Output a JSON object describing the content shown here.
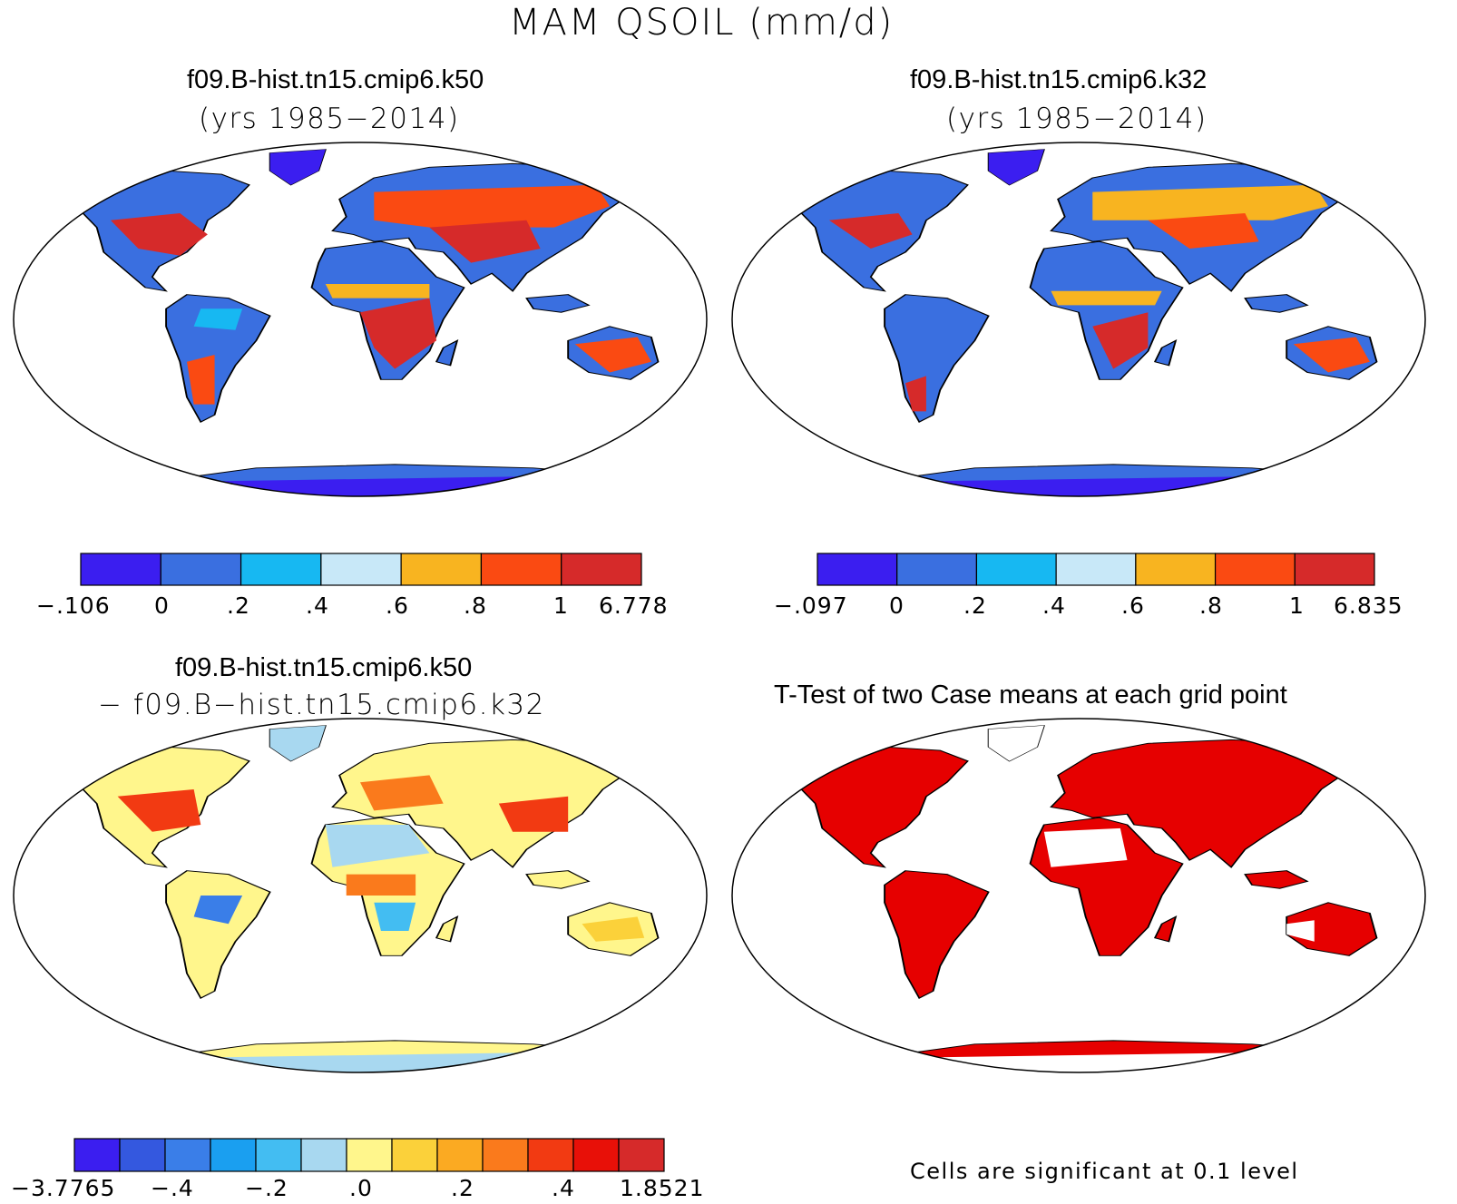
{
  "figure": {
    "title": "MAM QSOIL (mm/d)"
  },
  "palette": {
    "abs": [
      "#3b1ef0",
      "#3a6fe0",
      "#17b8f2",
      "#c8e8f8",
      "#f8b420",
      "#fa4a12",
      "#d62a2a"
    ],
    "diff": [
      "#3b1ef0",
      "#3458df",
      "#3a7ee8",
      "#1a9ff0",
      "#43bdf2",
      "#a8d8f0",
      "#fff68c",
      "#fbd13a",
      "#fbaa22",
      "#fa7a1c",
      "#f23a12",
      "#e81008",
      "#d62a2a"
    ],
    "ttest": "#e60000"
  },
  "panels": [
    {
      "title": "f09.B-hist.tn15.cmip6.k50",
      "subtitle": "(yrs 1985−2014)",
      "colorbar": {
        "ticks": [
          "−.106",
          "0",
          ".2",
          ".4",
          ".6",
          ".8",
          "1",
          "6.778"
        ]
      }
    },
    {
      "title": "f09.B-hist.tn15.cmip6.k32",
      "subtitle": "(yrs 1985−2014)",
      "colorbar": {
        "ticks": [
          "−.097",
          "0",
          ".2",
          ".4",
          ".6",
          ".8",
          "1",
          "6.835"
        ]
      }
    },
    {
      "title": "f09.B-hist.tn15.cmip6.k50",
      "subtitle": "− f09.B−hist.tn15.cmip6.k32",
      "colorbar": {
        "ticks": [
          "−3.7765",
          "−.4",
          "−.2",
          ".0",
          ".2",
          ".4",
          "1.8521"
        ]
      }
    },
    {
      "title": "T-Test of two Case means at each grid point",
      "note": "Cells are significant at 0.1 level"
    }
  ]
}
